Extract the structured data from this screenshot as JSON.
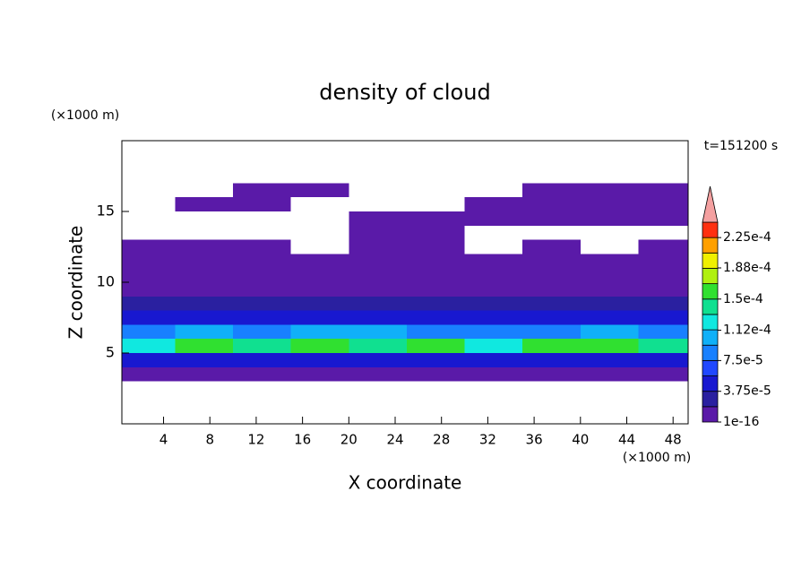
{
  "chart_data": {
    "type": "contour",
    "title": "density of cloud",
    "x_label": "X coordinate",
    "y_label": "Z coordinate",
    "x_unit": "(×1000 m)",
    "y_unit": "(×1000 m)",
    "annotation": "t=151200 s",
    "xlim": [
      0.4,
      49.3
    ],
    "ylim": [
      0,
      20
    ],
    "xticks": [
      4,
      8,
      12,
      16,
      20,
      24,
      28,
      32,
      36,
      40,
      44,
      48
    ],
    "yticks": [
      5,
      10,
      15
    ],
    "x": [
      2.5,
      7.5,
      12.5,
      17.5,
      22.5,
      27.5,
      32.5,
      37.5,
      42.5,
      47.5
    ],
    "z_centers": [
      3.5,
      4.5,
      5.5,
      6.5,
      7.5,
      8.5,
      9.5,
      10.5,
      11.5,
      12.5,
      13.5,
      14.5,
      15.5,
      16.5
    ],
    "values": [
      [
        2e-06,
        2e-06,
        2e-06,
        2e-06,
        2e-06,
        2e-06,
        2e-06,
        2e-06,
        2e-06,
        2e-06
      ],
      [
        4.5e-05,
        5e-05,
        4e-05,
        5e-05,
        4.5e-05,
        5e-05,
        4.5e-05,
        5e-05,
        4e-05,
        5e-05
      ],
      [
        0.00013,
        0.00016,
        0.000145,
        0.00016,
        0.00014,
        0.000155,
        0.00013,
        0.00015,
        0.00016,
        0.000135
      ],
      [
        9e-05,
        0.0001,
        8.5e-05,
        9.5e-05,
        0.0001,
        9e-05,
        8.5e-05,
        9e-05,
        0.0001,
        9e-05
      ],
      [
        4e-05,
        5e-05,
        4.5e-05,
        4e-05,
        5e-05,
        4.5e-05,
        4e-05,
        5e-05,
        4.5e-05,
        5e-05
      ],
      [
        2.5e-05,
        2.5e-05,
        2.5e-05,
        2.5e-05,
        2.5e-05,
        2.5e-05,
        2.5e-05,
        2.5e-05,
        2.5e-05,
        2.5e-05
      ],
      [
        1e-05,
        1e-05,
        1e-05,
        1e-05,
        1e-05,
        1e-05,
        1e-05,
        1e-05,
        1e-05,
        1e-05
      ],
      [
        1e-06,
        1e-06,
        1e-06,
        1e-06,
        1e-06,
        1e-06,
        1e-06,
        1e-06,
        1e-06,
        1e-06
      ],
      [
        1e-06,
        1e-06,
        1e-06,
        1e-06,
        1e-06,
        1e-06,
        1e-06,
        1e-06,
        1e-06,
        1e-06
      ],
      [
        1e-06,
        1e-06,
        1e-06,
        null,
        1e-06,
        1e-06,
        null,
        1e-06,
        null,
        1e-06
      ],
      [
        null,
        null,
        null,
        null,
        1e-06,
        1e-06,
        null,
        null,
        null,
        null
      ],
      [
        null,
        null,
        null,
        null,
        1e-06,
        1e-06,
        1e-06,
        1e-06,
        1e-06,
        1e-06
      ],
      [
        null,
        1e-06,
        1e-06,
        null,
        null,
        null,
        1e-06,
        1e-06,
        1e-06,
        1e-06
      ],
      [
        null,
        null,
        1e-06,
        1e-06,
        null,
        null,
        null,
        1e-06,
        1e-06,
        1e-06
      ]
    ],
    "levels": [
      1e-16,
      1.875e-05,
      3.75e-05,
      5.625e-05,
      7.5e-05,
      9.375e-05,
      0.0001125,
      0.00013125,
      0.00015,
      0.00016875,
      0.0001875,
      0.00020625,
      0.000225,
      0.00024375
    ],
    "colors": [
      "#5a1aa8",
      "#2a20a0",
      "#1818d0",
      "#2048ff",
      "#1880ff",
      "#10b0f8",
      "#10e8e0",
      "#10e090",
      "#30e030",
      "#b0f010",
      "#f0f000",
      "#ffa000",
      "#ff3010"
    ],
    "over_color": "#f4a0a0",
    "colorbar_ticks": [
      {
        "value": 1e-16,
        "label": "1e-16"
      },
      {
        "value": 3.75e-05,
        "label": "3.75e-5"
      },
      {
        "value": 7.5e-05,
        "label": "7.5e-5"
      },
      {
        "value": 0.000112,
        "label": "1.12e-4"
      },
      {
        "value": 0.00015,
        "label": "1.5e-4"
      },
      {
        "value": 0.000188,
        "label": "1.88e-4"
      },
      {
        "value": 0.000225,
        "label": "2.25e-4"
      }
    ]
  }
}
